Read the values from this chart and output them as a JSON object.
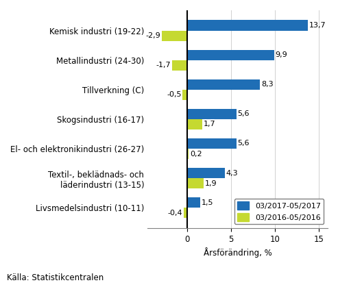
{
  "categories": [
    "Kemisk industri (19-22)",
    "Metallindustri (24-30)",
    "Tillverkning (C)",
    "Skogsindustri (16-17)",
    "El- och elektronikindustri (26-27)",
    "Textil-, beklädnads- och\nläderindustri (13-15)",
    "Livsmedelsindustri (10-11)"
  ],
  "series1_values": [
    13.7,
    9.9,
    8.3,
    5.6,
    5.6,
    4.3,
    1.5
  ],
  "series2_values": [
    -2.9,
    -1.7,
    -0.5,
    1.7,
    0.2,
    1.9,
    -0.4
  ],
  "series1_color": "#1F6EB5",
  "series2_color": "#C5D931",
  "series1_label": "03/2017-05/2017",
  "series2_label": "03/2016-05/2016",
  "xlabel": "Årsförändring, %",
  "source": "Källa: Statistikcentralen",
  "bar_height": 0.35,
  "label_fontsize": 8.5,
  "tick_fontsize": 8.5,
  "source_fontsize": 8.5,
  "value_fontsize": 8
}
